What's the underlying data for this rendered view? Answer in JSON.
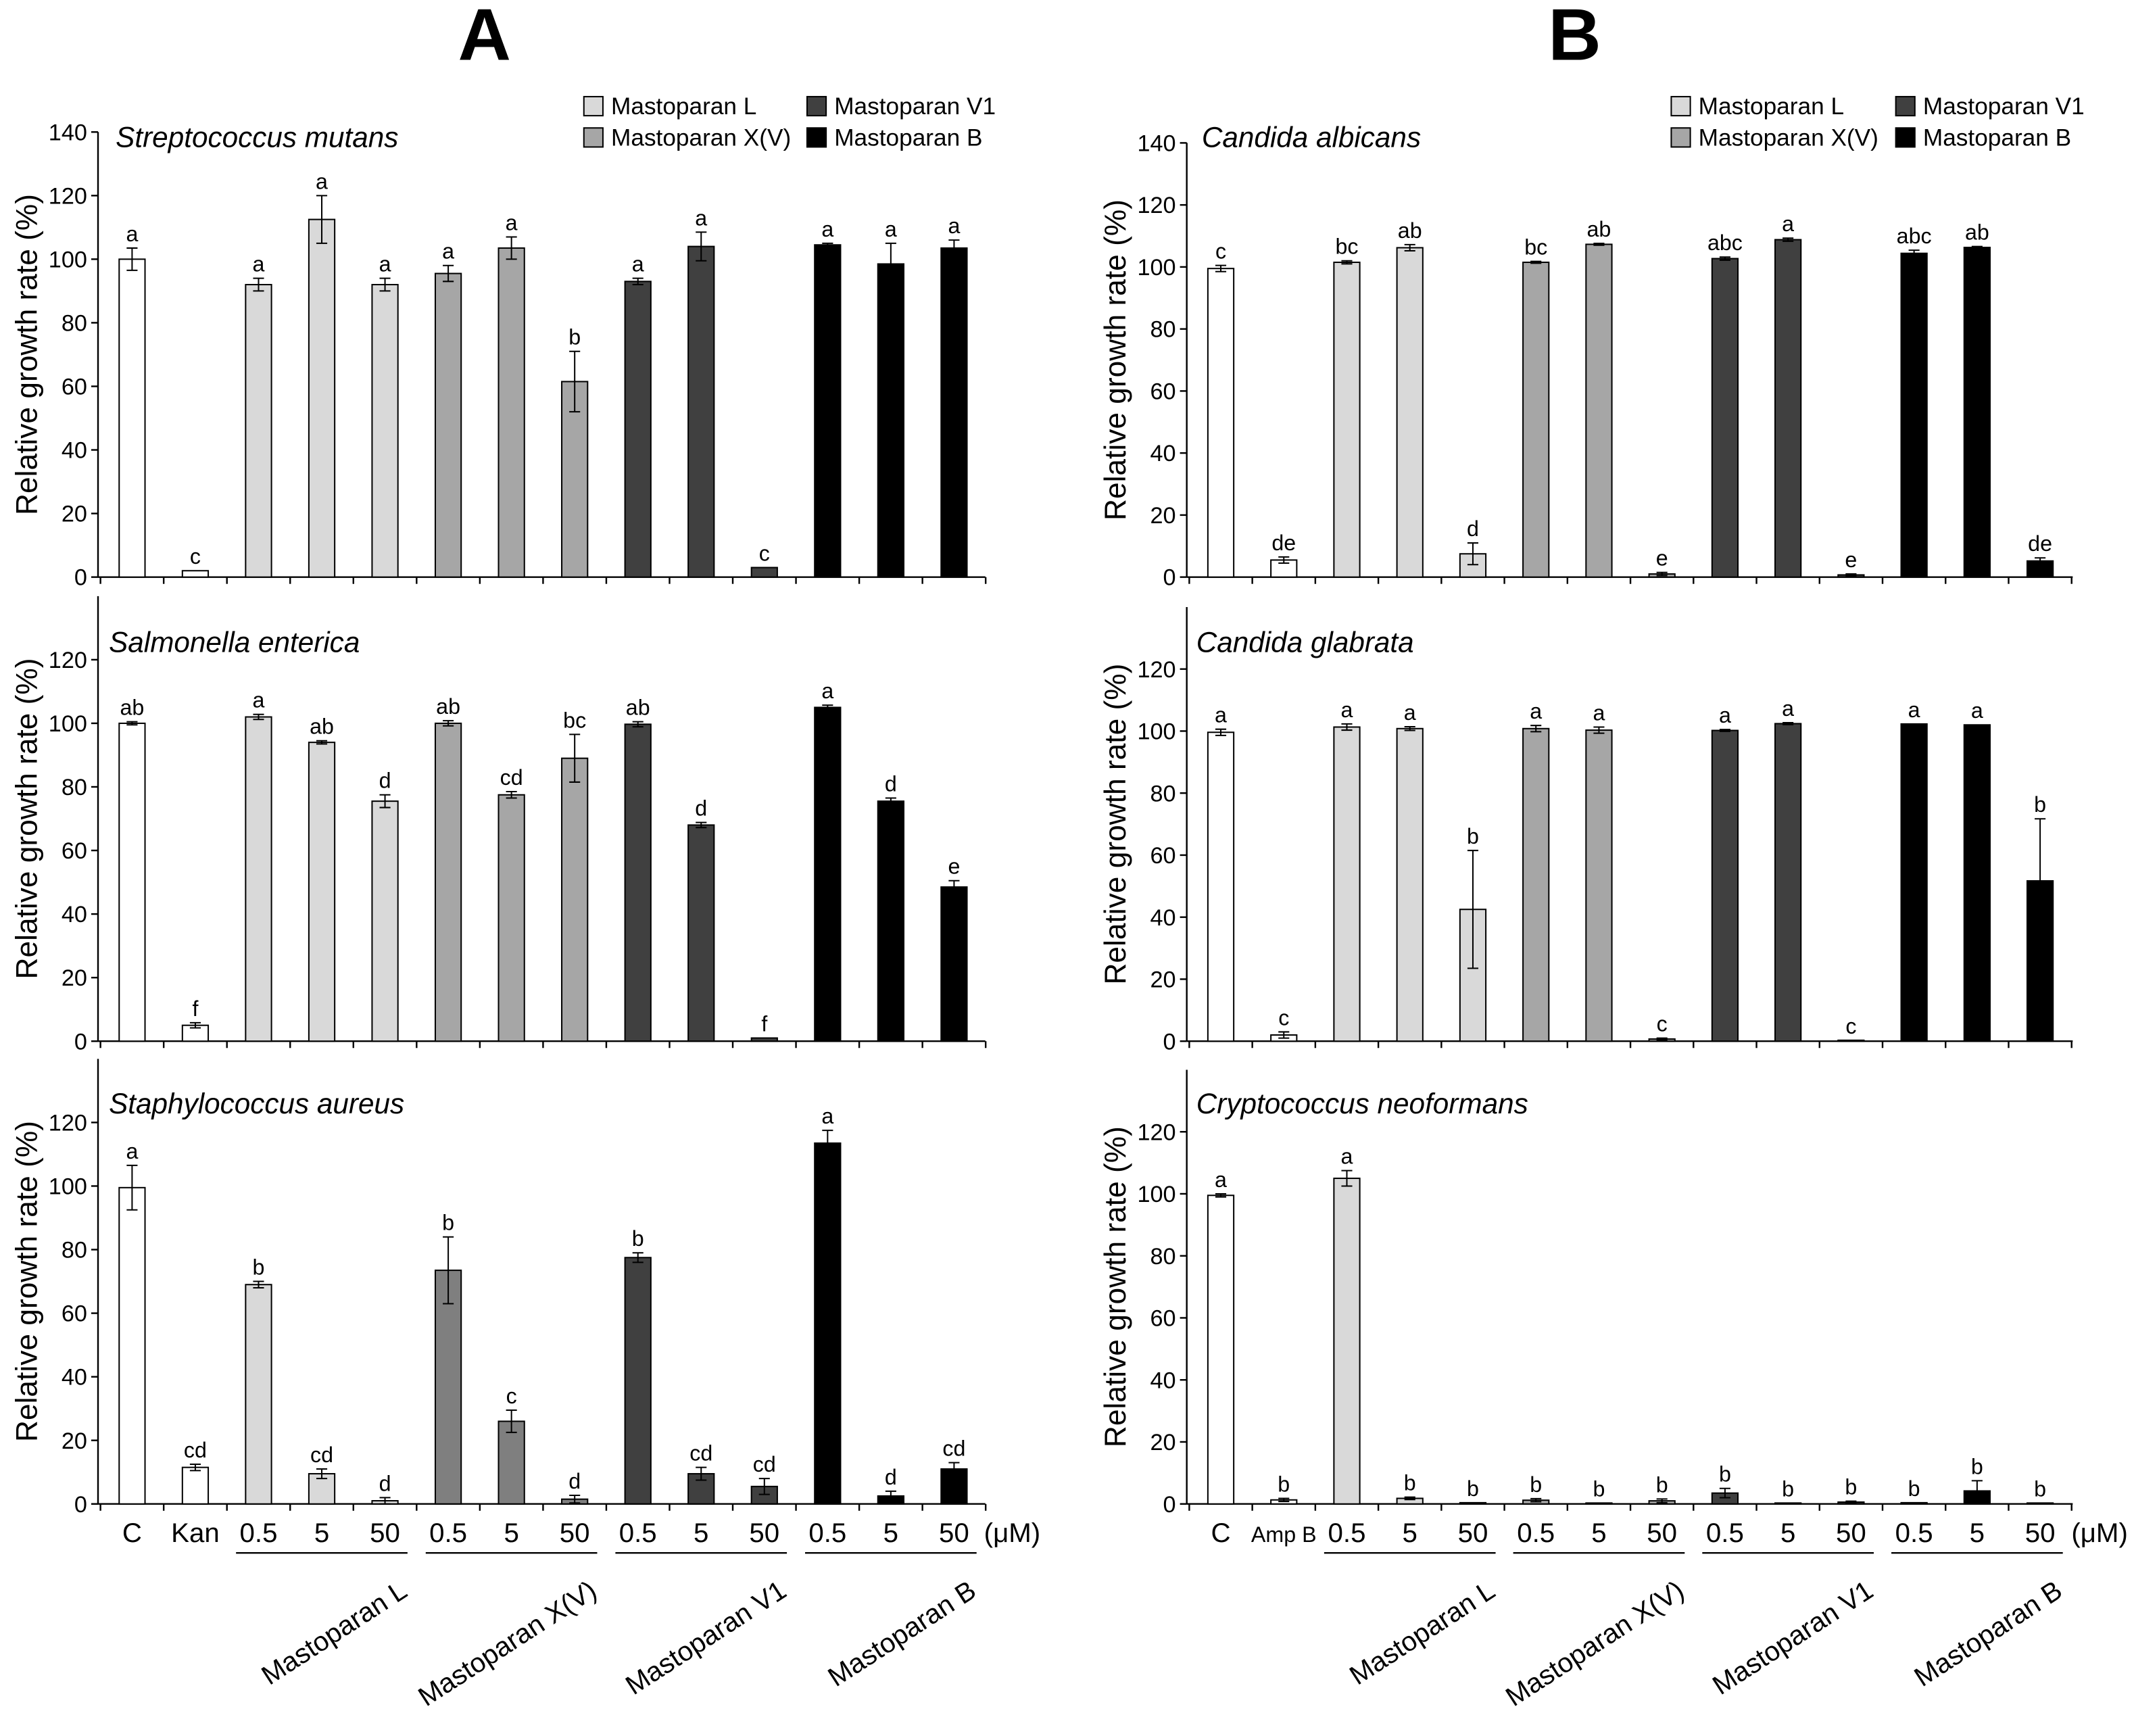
{
  "chart_data": [
    {
      "type": "bar",
      "panel_label": "A",
      "ylabel": "Relative growth rate (%)",
      "legend": [
        {
          "label": "Mastoparan L",
          "color": "#d9d9d9"
        },
        {
          "label": "Mastoparan X(V)",
          "color": "#a6a6a6"
        },
        {
          "label": "Mastoparan V1",
          "color": "#404040"
        },
        {
          "label": "Mastoparan B",
          "color": "#000000"
        }
      ],
      "categories": [
        "C",
        "Kan",
        "0.5",
        "5",
        "50",
        "0.5",
        "5",
        "50",
        "0.5",
        "5",
        "50",
        "0.5",
        "5",
        "50"
      ],
      "unit_label": "(μM)",
      "group_labels": [
        "Mastoparan L",
        "Mastoparan X(V)",
        "Mastoparan V1",
        "Mastoparan B"
      ],
      "bar_series": [
        0,
        0,
        1,
        1,
        1,
        2,
        2,
        2,
        3,
        3,
        3,
        4,
        4,
        4
      ],
      "subplots": [
        {
          "title": "Streptococcus mutans",
          "ylim": [
            0,
            140
          ],
          "yticks": [
            0,
            20,
            40,
            60,
            80,
            100,
            120,
            140
          ],
          "series_colors": [
            "#ffffff",
            "#d9d9d9",
            "#a6a6a6",
            "#404040",
            "#000000"
          ],
          "values": [
            100,
            2,
            92,
            112.5,
            92,
            95.5,
            103.5,
            61.5,
            93,
            104,
            3,
            104.5,
            98.5,
            103.5
          ],
          "errors": [
            3.5,
            0,
            2,
            7.5,
            2,
            2.5,
            3.5,
            9.5,
            1,
            4.5,
            0,
            0.5,
            6.5,
            2.5
          ],
          "letters": [
            "a",
            "c",
            "a",
            "a",
            "a",
            "a",
            "a",
            "b",
            "a",
            "a",
            "c",
            "a",
            "a",
            "a"
          ]
        },
        {
          "title": "Salmonella enterica",
          "ylim": [
            0,
            140
          ],
          "yticks": [
            0,
            20,
            40,
            60,
            80,
            100,
            120
          ],
          "series_colors": [
            "#ffffff",
            "#d9d9d9",
            "#a6a6a6",
            "#404040",
            "#000000"
          ],
          "values": [
            100,
            5,
            102,
            94,
            75.5,
            100,
            77.5,
            89,
            99.7,
            68,
            1,
            105,
            75.5,
            48.5
          ],
          "errors": [
            0.5,
            0.8,
            0.8,
            0.5,
            2,
            0.8,
            1,
            7.5,
            0.8,
            0.8,
            0,
            0.7,
            1,
            2
          ],
          "letters": [
            "ab",
            "f",
            "a",
            "ab",
            "d",
            "ab",
            "cd",
            "bc",
            "ab",
            "d",
            "f",
            "a",
            "d",
            "e"
          ]
        },
        {
          "title": "Staphylococcus aureus",
          "ylim": [
            0,
            140
          ],
          "yticks": [
            0,
            20,
            40,
            60,
            80,
            100,
            120
          ],
          "series_colors": [
            "#ffffff",
            "#d9d9d9",
            "#7f7f7f",
            "#404040",
            "#000000"
          ],
          "values": [
            99.5,
            11.5,
            69,
            9.5,
            1,
            73.5,
            26,
            1.5,
            77.5,
            9.5,
            5.5,
            113.5,
            2.5,
            11
          ],
          "errors": [
            7,
            1,
            1,
            1.5,
            1,
            10.5,
            3.5,
            1.2,
            1.5,
            2,
            2.5,
            4,
            1.5,
            2
          ],
          "letters": [
            "a",
            "cd",
            "b",
            "cd",
            "d",
            "b",
            "c",
            "d",
            "b",
            "cd",
            "cd",
            "a",
            "d",
            "cd"
          ]
        }
      ]
    },
    {
      "type": "bar",
      "panel_label": "B",
      "ylabel": "Relative growth rate (%)",
      "legend": [
        {
          "label": "Mastoparan L",
          "color": "#d9d9d9"
        },
        {
          "label": "Mastoparan X(V)",
          "color": "#a6a6a6"
        },
        {
          "label": "Mastoparan V1",
          "color": "#404040"
        },
        {
          "label": "Mastoparan B",
          "color": "#000000"
        }
      ],
      "categories": [
        "C",
        "Amp B",
        "0.5",
        "5",
        "50",
        "0.5",
        "5",
        "50",
        "0.5",
        "5",
        "50",
        "0.5",
        "5",
        "50"
      ],
      "unit_label": "(μM)",
      "group_labels": [
        "Mastoparan L",
        "Mastoparan X(V)",
        "Mastoparan V1",
        "Mastoparan B"
      ],
      "bar_series": [
        0,
        0,
        1,
        1,
        1,
        2,
        2,
        2,
        3,
        3,
        3,
        4,
        4,
        4
      ],
      "subplots": [
        {
          "title": "Candida albicans",
          "ylim": [
            0,
            140
          ],
          "yticks": [
            0,
            20,
            40,
            60,
            80,
            100,
            120,
            140
          ],
          "series_colors": [
            "#ffffff",
            "#d9d9d9",
            "#a6a6a6",
            "#404040",
            "#000000"
          ],
          "values": [
            99.5,
            5.5,
            101.5,
            106.2,
            7.5,
            101.5,
            107.3,
            1,
            102.7,
            108.8,
            0.7,
            104.4,
            106.3,
            5.2
          ],
          "errors": [
            1,
            1,
            0.5,
            1,
            3.5,
            0.3,
            0.3,
            0.5,
            0.5,
            0.5,
            0.3,
            1,
            0.3,
            1
          ],
          "letters": [
            "c",
            "de",
            "bc",
            "ab",
            "d",
            "bc",
            "ab",
            "e",
            "abc",
            "a",
            "e",
            "abc",
            "ab",
            "de"
          ]
        },
        {
          "title": "Candida glabrata",
          "ylim": [
            0,
            140
          ],
          "yticks": [
            0,
            20,
            40,
            60,
            80,
            100,
            120
          ],
          "series_colors": [
            "#ffffff",
            "#d9d9d9",
            "#a6a6a6",
            "#404040",
            "#000000"
          ],
          "values": [
            99.6,
            2,
            101.3,
            100.8,
            42.5,
            100.8,
            100.3,
            0.7,
            100.2,
            102.4,
            0.3,
            102.3,
            102,
            51.7
          ],
          "errors": [
            1,
            1,
            1,
            0.6,
            19,
            1,
            1,
            0.3,
            0.3,
            0.3,
            0,
            0,
            0,
            20
          ],
          "letters": [
            "a",
            "c",
            "a",
            "a",
            "b",
            "a",
            "a",
            "c",
            "a",
            "a",
            "c",
            "a",
            "a",
            "b"
          ]
        },
        {
          "title": "Cryptococcus neoformans",
          "ylim": [
            0,
            140
          ],
          "yticks": [
            0,
            20,
            40,
            60,
            80,
            100,
            120
          ],
          "series_colors": [
            "#ffffff",
            "#d9d9d9",
            "#a6a6a6",
            "#404040",
            "#000000"
          ],
          "values": [
            99.5,
            1.3,
            105,
            1.8,
            0.4,
            1.2,
            0.3,
            1,
            3.5,
            0.3,
            0.6,
            0.4,
            4.2,
            0.3
          ],
          "errors": [
            0.5,
            0.5,
            2.5,
            0.4,
            0,
            0.5,
            0,
            0.6,
            1.5,
            0,
            0.3,
            0,
            3.3,
            0
          ],
          "letters": [
            "a",
            "b",
            "a",
            "b",
            "b",
            "b",
            "b",
            "b",
            "b",
            "b",
            "b",
            "b",
            "b",
            "b"
          ]
        }
      ]
    }
  ]
}
